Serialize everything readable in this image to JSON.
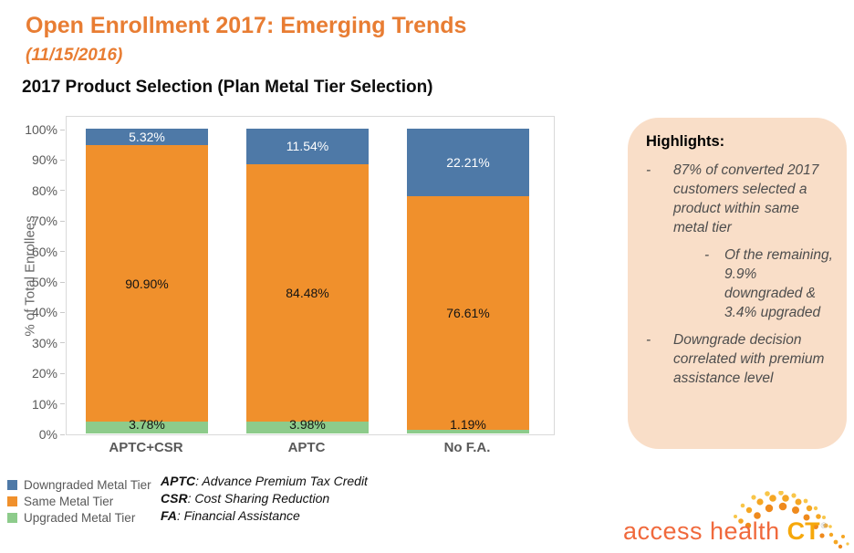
{
  "slide": {
    "title": "Open Enrollment 2017: Emerging Trends",
    "date_subtitle": "(11/15/2016)",
    "section_title": "2017 Product Selection (Plan Metal Tier Selection)",
    "title_color": "#E87D33"
  },
  "chart_data": {
    "type": "bar",
    "stacked": true,
    "percent": true,
    "title": "2017 Product Selection (Plan Metal Tier Selection)",
    "categories": [
      "APTC+CSR",
      "APTC",
      "No F.A."
    ],
    "series": [
      {
        "name": "Downgraded Metal Tier",
        "color": "#4E79A7",
        "label_color": "#FFFFFF",
        "label_anchor": "center",
        "values": [
          5.32,
          11.54,
          22.21
        ]
      },
      {
        "name": "Same Metal Tier",
        "color": "#F0902C",
        "label_color": "#141414",
        "label_anchor": "center",
        "values": [
          90.9,
          84.48,
          76.61
        ]
      },
      {
        "name": "Upgraded Metal Tier",
        "color": "#8DCB8B",
        "label_color": "#141414",
        "label_anchor": "bottom",
        "values": [
          3.78,
          3.98,
          1.19
        ]
      }
    ],
    "value_label_suffix": "%",
    "xlabel": "",
    "ylabel": "% of Total Enrollees",
    "yticks": [
      "100%",
      "90%",
      "80%",
      "70%",
      "60%",
      "50%",
      "40%",
      "30%",
      "20%",
      "10%",
      "0%"
    ],
    "ylim": [
      0,
      100
    ],
    "grid": false,
    "legend_position": "bottom-left"
  },
  "footnotes": [
    {
      "term": "APTC",
      "definition": ": Advance Premium Tax Credit"
    },
    {
      "term": "CSR",
      "definition": ": Cost Sharing Reduction"
    },
    {
      "term": "FA",
      "definition": ": Financial Assistance"
    }
  ],
  "highlights": {
    "heading": "Highlights:",
    "bullet_char": "-",
    "background": "#F9DEC8",
    "text_color": "#4D4D4D",
    "items": [
      {
        "level": 1,
        "text": "87% of converted 2017 customers selected a product within same metal tier"
      },
      {
        "level": 2,
        "text": "Of the remaining, 9.9% downgraded & 3.4% upgraded"
      },
      {
        "level": 1,
        "text": "Downgrade decision correlated with premium assistance level"
      }
    ]
  },
  "logo": {
    "text_primary": "access health",
    "text_accent": "CT",
    "trademark": "®",
    "primary_color": "#F0693C",
    "accent_color": "#F6A80B",
    "sunburst_colors": [
      "#F8C649",
      "#F5A623",
      "#EF8A1D"
    ]
  }
}
